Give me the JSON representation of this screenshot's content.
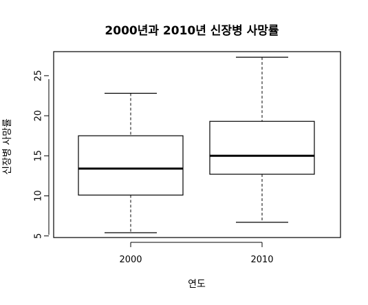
{
  "chart_data": {
    "type": "boxplot",
    "title": "2000년과 2010년 신장병 사망률",
    "xlabel": "연도",
    "ylabel": "신장병 사망률",
    "categories": [
      "2000",
      "2010"
    ],
    "boxes": [
      {
        "category": "2000",
        "min": 5.4,
        "q1": 10.1,
        "median": 13.4,
        "q3": 17.5,
        "max": 22.8
      },
      {
        "category": "2010",
        "min": 6.7,
        "q1": 12.7,
        "median": 15.0,
        "q3": 19.3,
        "max": 27.3
      }
    ],
    "ylim": [
      4.8,
      28.0
    ],
    "yticks": [
      5,
      10,
      15,
      20,
      25
    ],
    "ytick_labels": [
      "5",
      "10",
      "15",
      "20",
      "25"
    ],
    "grid": false,
    "legend": "none"
  }
}
